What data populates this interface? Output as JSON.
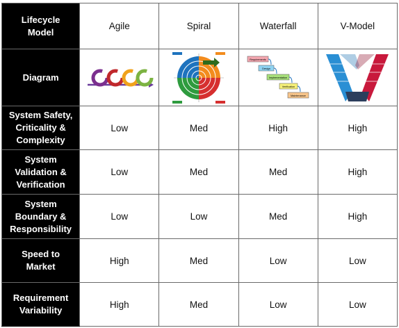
{
  "header": {
    "row_label": "Lifecycle Model",
    "models": [
      "Agile",
      "Spiral",
      "Waterfall",
      "V-Model"
    ]
  },
  "diagram_row": {
    "label": "Diagram",
    "waterfall_steps": [
      "Requirements",
      "Design",
      "Implementation",
      "Verification",
      "Maintenance"
    ],
    "colors": {
      "agile_circles": [
        "#7b2f8e",
        "#c0282c",
        "#f0a21c",
        "#7cb342"
      ],
      "agile_arrow": "#6a3c9c",
      "spiral_quadrants": [
        "#f28c1e",
        "#1e73be",
        "#2e9b3e",
        "#d62f2f"
      ],
      "waterfall_boxes": [
        "#f4a7b0",
        "#8fd3f2",
        "#a8e07b",
        "#f5f07a",
        "#f7c58b"
      ],
      "vmodel_left": "#2a8fd4",
      "vmodel_right": "#c8193c",
      "vmodel_bottom": "#2c3e5c"
    }
  },
  "rows": [
    {
      "label": "System Safety, Criticality & Complexity",
      "values": [
        "Low",
        "Med",
        "High",
        "High"
      ]
    },
    {
      "label": "System Validation & Verification",
      "values": [
        "Low",
        "Med",
        "Med",
        "High"
      ]
    },
    {
      "label": "System Boundary & Responsibility",
      "values": [
        "Low",
        "Low",
        "Med",
        "High"
      ]
    },
    {
      "label": "Speed to Market",
      "values": [
        "High",
        "Med",
        "Low",
        "Low"
      ]
    },
    {
      "label": "Requirement Variability",
      "values": [
        "High",
        "Med",
        "Low",
        "Low"
      ]
    }
  ]
}
